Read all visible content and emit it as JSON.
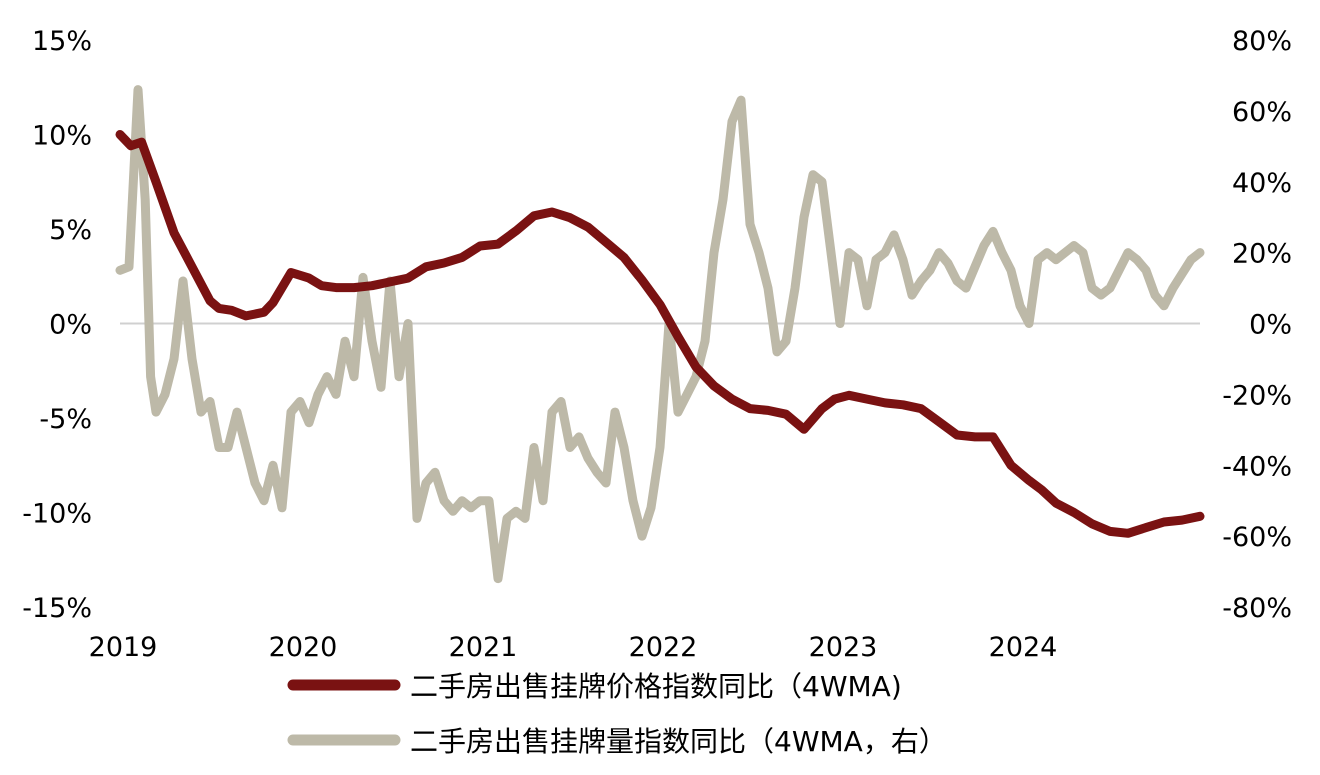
{
  "chart_data": {
    "type": "line",
    "title": "",
    "x_ticks": [
      "2019",
      "2020",
      "2021",
      "2022",
      "2023",
      "2024"
    ],
    "x_tick_values": [
      2019,
      2020,
      2021,
      2022,
      2023,
      2024
    ],
    "xlim": [
      2019,
      2025
    ],
    "left_axis": {
      "ylim": [
        -15,
        15
      ],
      "ticks": [
        15,
        10,
        5,
        0,
        -5,
        -10,
        -15
      ],
      "tick_labels": [
        "15%",
        "10%",
        "5%",
        "0%",
        "-5%",
        "-10%",
        "-15%"
      ]
    },
    "right_axis": {
      "ylim": [
        -80,
        80
      ],
      "ticks": [
        80,
        60,
        40,
        20,
        0,
        -20,
        -40,
        -60,
        -80
      ],
      "tick_labels": [
        "80%",
        "60%",
        "40%",
        "20%",
        "0%",
        "-20%",
        "-40%",
        "-60%",
        "-80%"
      ]
    },
    "zero_line": true,
    "legend_position": "bottom",
    "series": [
      {
        "name": "二手房出售挂牌价格指数同比（4WMA)",
        "axis": "left",
        "color": "#7a1212",
        "x": [
          2019.0,
          2019.06,
          2019.12,
          2019.2,
          2019.3,
          2019.4,
          2019.5,
          2019.55,
          2019.62,
          2019.7,
          2019.8,
          2019.85,
          2019.95,
          2020.05,
          2020.12,
          2020.2,
          2020.3,
          2020.4,
          2020.5,
          2020.6,
          2020.7,
          2020.8,
          2020.9,
          2021.0,
          2021.1,
          2021.2,
          2021.3,
          2021.4,
          2021.5,
          2021.6,
          2021.7,
          2021.8,
          2021.9,
          2022.0,
          2022.1,
          2022.2,
          2022.3,
          2022.4,
          2022.5,
          2022.6,
          2022.7,
          2022.8,
          2022.9,
          2022.97,
          2023.05,
          2023.15,
          2023.25,
          2023.35,
          2023.45,
          2023.55,
          2023.65,
          2023.75,
          2023.85,
          2023.95,
          2024.05,
          2024.12,
          2024.2,
          2024.3,
          2024.4,
          2024.5,
          2024.6,
          2024.7,
          2024.8,
          2024.9,
          2025.0
        ],
        "values": [
          10,
          9.4,
          9.6,
          7.5,
          4.8,
          3.0,
          1.2,
          0.8,
          0.7,
          0.4,
          0.6,
          1.1,
          2.7,
          2.4,
          2.0,
          1.9,
          1.9,
          2.0,
          2.2,
          2.4,
          3.0,
          3.2,
          3.5,
          4.1,
          4.2,
          4.9,
          5.7,
          5.9,
          5.6,
          5.1,
          4.3,
          3.5,
          2.3,
          1.0,
          -0.7,
          -2.3,
          -3.3,
          -4.0,
          -4.5,
          -4.6,
          -4.8,
          -5.6,
          -4.5,
          -4.0,
          -3.8,
          -4.0,
          -4.2,
          -4.3,
          -4.5,
          -5.2,
          -5.9,
          -6.0,
          -6.0,
          -7.5,
          -8.3,
          -8.8,
          -9.5,
          -10.0,
          -10.6,
          -11.0,
          -11.1,
          -10.8,
          -10.5,
          -10.4,
          -10.2
        ],
        "line_width": 9
      },
      {
        "name": "二手房出售挂牌量指数同比（4WMA，右）",
        "axis": "right",
        "color": "#bdb9a8",
        "x": [
          2019.0,
          2019.05,
          2019.1,
          2019.14,
          2019.17,
          2019.2,
          2019.25,
          2019.3,
          2019.35,
          2019.4,
          2019.45,
          2019.5,
          2019.55,
          2019.6,
          2019.65,
          2019.7,
          2019.75,
          2019.8,
          2019.85,
          2019.9,
          2019.95,
          2020.0,
          2020.05,
          2020.1,
          2020.15,
          2020.2,
          2020.25,
          2020.3,
          2020.35,
          2020.4,
          2020.45,
          2020.5,
          2020.55,
          2020.6,
          2020.65,
          2020.7,
          2020.75,
          2020.8,
          2020.85,
          2020.9,
          2020.95,
          2021.0,
          2021.05,
          2021.1,
          2021.15,
          2021.2,
          2021.25,
          2021.3,
          2021.35,
          2021.4,
          2021.45,
          2021.5,
          2021.55,
          2021.6,
          2021.65,
          2021.7,
          2021.75,
          2021.8,
          2021.85,
          2021.9,
          2021.95,
          2022.0,
          2022.05,
          2022.1,
          2022.15,
          2022.2,
          2022.25,
          2022.3,
          2022.35,
          2022.4,
          2022.45,
          2022.5,
          2022.55,
          2022.6,
          2022.65,
          2022.7,
          2022.75,
          2022.8,
          2022.85,
          2022.9,
          2022.95,
          2023.0,
          2023.05,
          2023.1,
          2023.15,
          2023.2,
          2023.25,
          2023.3,
          2023.35,
          2023.4,
          2023.45,
          2023.5,
          2023.55,
          2023.6,
          2023.65,
          2023.7,
          2023.75,
          2023.8,
          2023.85,
          2023.9,
          2023.95,
          2024.0,
          2024.05,
          2024.1,
          2024.15,
          2024.2,
          2024.25,
          2024.3,
          2024.35,
          2024.4,
          2024.45,
          2024.5,
          2024.55,
          2024.6,
          2024.65,
          2024.7,
          2024.75,
          2024.8,
          2024.85,
          2024.9,
          2024.95,
          2025.0
        ],
        "values": [
          15,
          16,
          66,
          35,
          -15,
          -25,
          -20,
          -10,
          12,
          -10,
          -25,
          -22,
          -35,
          -35,
          -25,
          -35,
          -45,
          -50,
          -40,
          -52,
          -25,
          -22,
          -28,
          -20,
          -15,
          -20,
          -5,
          -15,
          13,
          -5,
          -18,
          12,
          -15,
          0,
          -55,
          -45,
          -42,
          -50,
          -53,
          -50,
          -52,
          -50,
          -50,
          -72,
          -55,
          -53,
          -55,
          -35,
          -50,
          -25,
          -22,
          -35,
          -32,
          -38,
          -42,
          -45,
          -25,
          -35,
          -50,
          -60,
          -52,
          -35,
          0,
          -25,
          -20,
          -15,
          -5,
          20,
          35,
          57,
          63,
          28,
          20,
          10,
          -8,
          -5,
          10,
          30,
          42,
          40,
          20,
          0,
          20,
          18,
          5,
          18,
          20,
          25,
          18,
          8,
          12,
          15,
          20,
          17,
          12,
          10,
          16,
          22,
          26,
          20,
          15,
          5,
          0,
          18,
          20,
          18,
          20,
          22,
          20,
          10,
          8,
          10,
          15,
          20,
          18,
          15,
          8,
          5,
          10,
          14,
          18,
          20
        ],
        "line_width": 9
      }
    ]
  }
}
